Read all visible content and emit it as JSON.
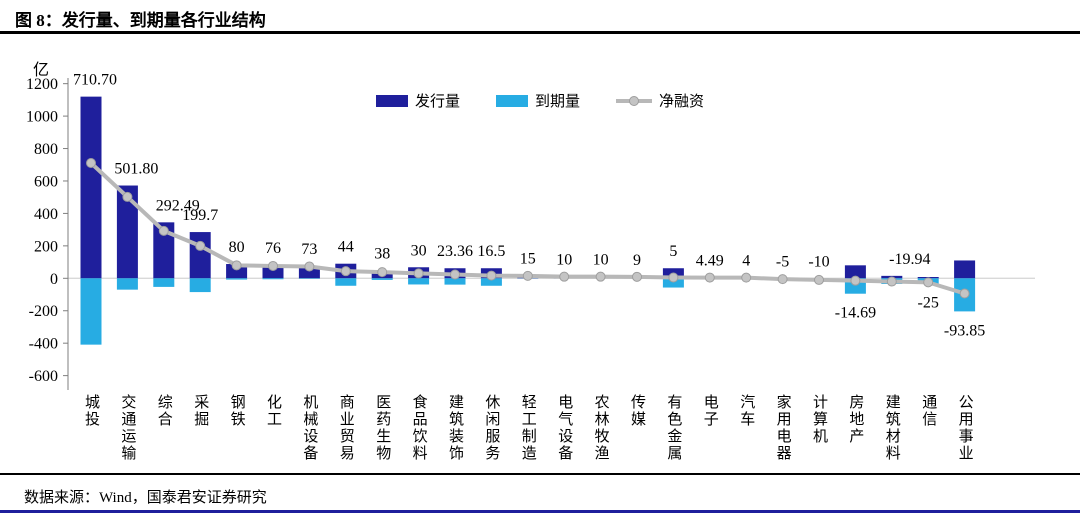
{
  "figure": {
    "title": "图 8：发行量、到期量各行业结构",
    "unit_label": "亿",
    "source_note": "数据来源：Wind，国泰君安证券研究"
  },
  "legend": {
    "issuance": "发行量",
    "maturity": "到期量",
    "net": "净融资"
  },
  "colors": {
    "issuance": "#1F1F9C",
    "maturity": "#27ACE3",
    "net_line": "#B8B8B8",
    "marker_fill": "#C4C4C4",
    "marker_edge": "#9E9E9E",
    "grid": "#D9D9D9",
    "axis": "#7F7F7F",
    "text": "#000000",
    "footer_bar": "#1F1F9C"
  },
  "chart_data": {
    "type": "bar",
    "subtype": "grouped-bars-with-line",
    "title": "发行量、到期量各行业结构",
    "ylabel": "亿",
    "ylim": [
      -600,
      1200
    ],
    "y_ticks": [
      1200,
      1000,
      800,
      600,
      400,
      200,
      0,
      -200,
      -400,
      -600
    ],
    "grid": "zero-line-only",
    "legend_position": "top-center",
    "categories": [
      "城投",
      "交通运输",
      "综合",
      "采掘",
      "钢铁",
      "化工",
      "机械设备",
      "商业贸易",
      "医药生物",
      "食品饮料",
      "建筑装饰",
      "休闲服务",
      "轻工制造",
      "电气设备",
      "农林牧渔",
      "传媒",
      "有色金属",
      "电子",
      "汽车",
      "家用电器",
      "计算机",
      "房地产",
      "建筑材料",
      "通信",
      "公用事业"
    ],
    "series": [
      {
        "name": "发行量",
        "type": "bar",
        "color_key": "issuance",
        "values": [
          1120,
          572,
          345,
          285,
          88,
          82,
          76,
          90,
          48,
          68,
          62,
          62,
          16,
          11,
          10,
          9,
          62,
          5,
          4,
          0,
          0,
          80,
          15,
          8,
          110
        ]
      },
      {
        "name": "到期量",
        "type": "bar",
        "color_key": "maturity",
        "values": [
          -409,
          -70,
          -53,
          -85,
          -8,
          -6,
          -3,
          -46,
          -10,
          -38,
          -39,
          -46,
          -1,
          -1,
          0,
          0,
          -57,
          -0.5,
          0,
          -5,
          -10,
          -95,
          -35,
          -33,
          -204
        ]
      },
      {
        "name": "净融资",
        "type": "line",
        "color_key": "net_line",
        "values": [
          710.7,
          501.8,
          292.49,
          199.7,
          80,
          76,
          73,
          44,
          38,
          30,
          23.36,
          16.5,
          15,
          10,
          10,
          9,
          5,
          4.49,
          4,
          -5,
          -10,
          -14.69,
          -19.94,
          -25,
          -93.85
        ]
      }
    ],
    "net_labels": [
      "710.70",
      "501.80",
      "292.49",
      "199.7",
      "80",
      "76",
      "73",
      "44",
      "38",
      "30",
      "23.36",
      "16.5",
      "15",
      "10",
      "10",
      "9",
      "5",
      "4.49",
      "4",
      "-5",
      "-10",
      "-14.69",
      "-19.94",
      "-25",
      "-93.85"
    ],
    "labels_below_indices": [
      21,
      23,
      24
    ]
  }
}
